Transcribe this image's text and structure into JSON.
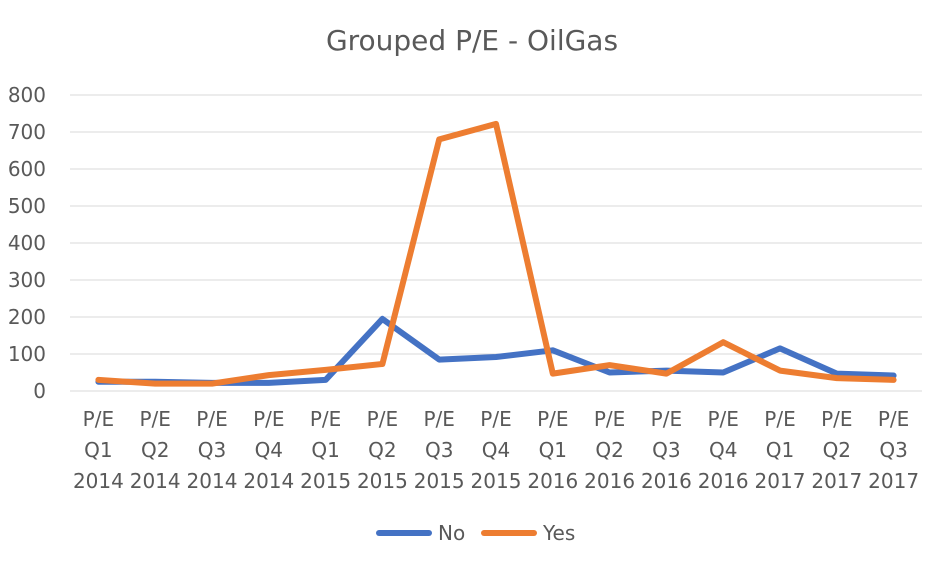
{
  "chart_data": {
    "type": "line",
    "title": "Grouped P/E - OilGas",
    "xlabel": "",
    "ylabel": "",
    "ylim": [
      0,
      800
    ],
    "yticks": [
      0,
      100,
      200,
      300,
      400,
      500,
      600,
      700,
      800
    ],
    "grid": true,
    "legend_position": "bottom",
    "categories": [
      [
        "P/E",
        "Q1",
        "2014"
      ],
      [
        "P/E",
        "Q2",
        "2014"
      ],
      [
        "P/E",
        "Q3",
        "2014"
      ],
      [
        "P/E",
        "Q4",
        "2014"
      ],
      [
        "P/E",
        "Q1",
        "2015"
      ],
      [
        "P/E",
        "Q2",
        "2015"
      ],
      [
        "P/E",
        "Q3",
        "2015"
      ],
      [
        "P/E",
        "Q4",
        "2015"
      ],
      [
        "P/E",
        "Q1",
        "2016"
      ],
      [
        "P/E",
        "Q2",
        "2016"
      ],
      [
        "P/E",
        "Q3",
        "2016"
      ],
      [
        "P/E",
        "Q4",
        "2016"
      ],
      [
        "P/E",
        "Q1",
        "2017"
      ],
      [
        "P/E",
        "Q2",
        "2017"
      ],
      [
        "P/E",
        "Q3",
        "2017"
      ]
    ],
    "series": [
      {
        "name": "No",
        "color": "#4472c4",
        "values": [
          25,
          25,
          22,
          22,
          30,
          195,
          85,
          92,
          110,
          50,
          55,
          50,
          115,
          47,
          42
        ]
      },
      {
        "name": "Yes",
        "color": "#ed7d31",
        "values": [
          30,
          20,
          20,
          43,
          57,
          73,
          680,
          722,
          47,
          70,
          47,
          132,
          55,
          35,
          30
        ]
      }
    ]
  }
}
